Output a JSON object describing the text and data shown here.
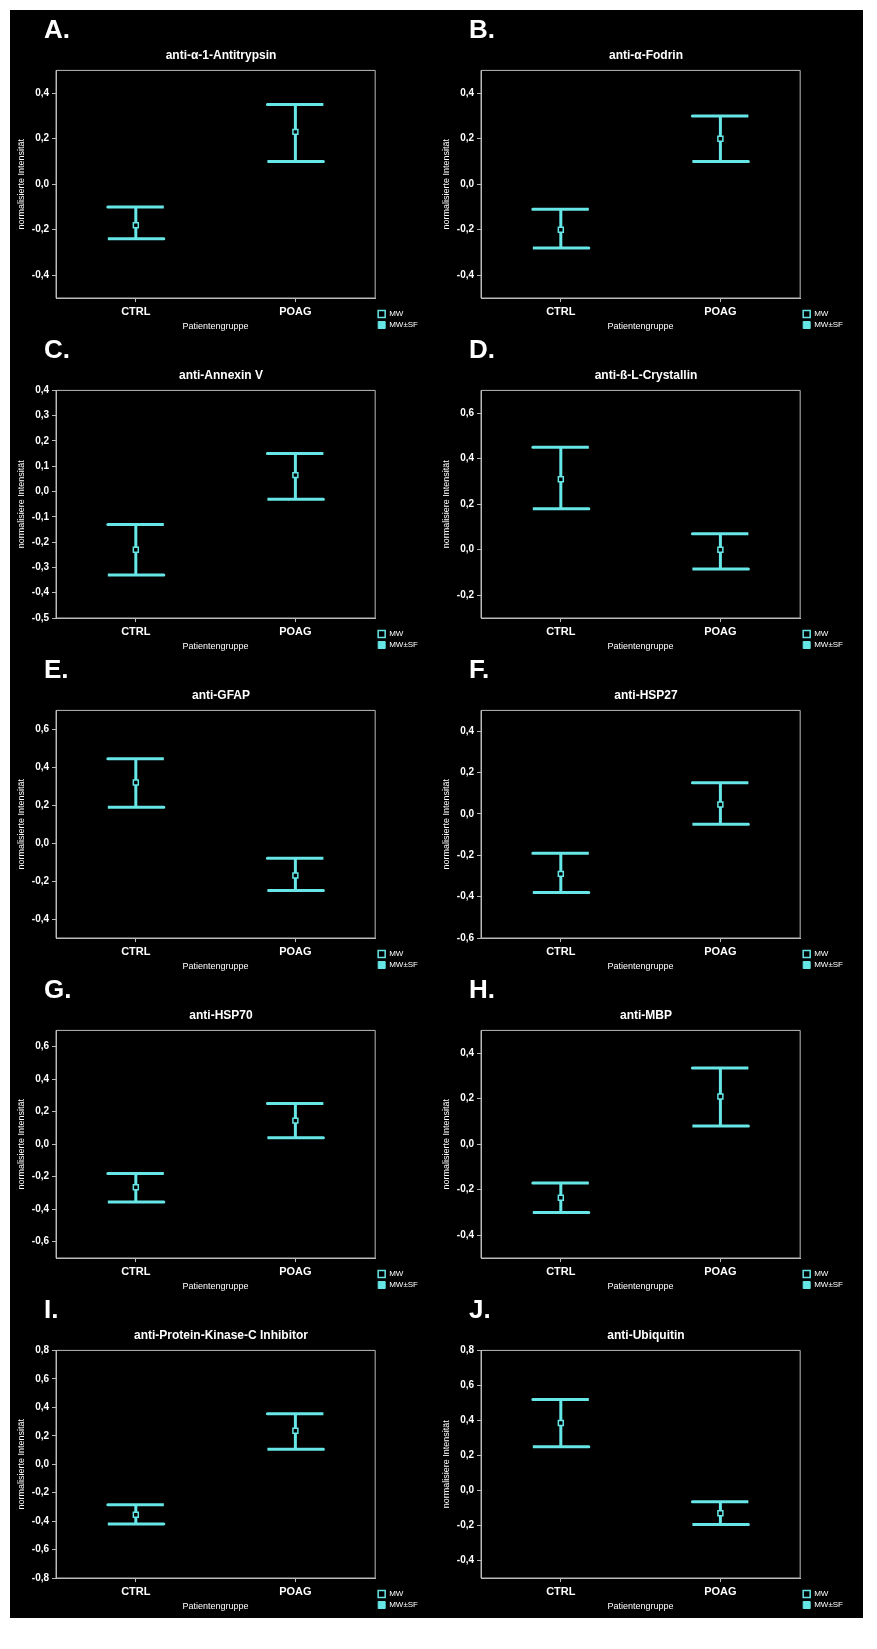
{
  "chart_data": [
    {
      "type": "scatter",
      "annotations": [
        "A.",
        "MW±SF"
      ],
      "title": "anti-α-1-Antitrypsin",
      "xlabel": "Patientengruppe",
      "ylabel": "normalisierte Intensität",
      "categories": [
        "CTRL",
        "POAG"
      ],
      "ylim": [
        -0.5,
        0.5
      ],
      "yticks": [
        {
          "value": -0.4,
          "label": "-0,4"
        },
        {
          "value": -0.2,
          "label": "-0,2"
        },
        {
          "value": 0,
          "label": "0,0"
        },
        {
          "value": 0.2,
          "label": "0,2"
        },
        {
          "value": 0.4,
          "label": "0,4"
        }
      ],
      "legend": "bottom right",
      "marker": "square",
      "series": [
        {
          "name": "MW",
          "color": "#66e6e6",
          "values": [
            -0.18,
            0.23
          ],
          "errors": [
            [
              -0.24,
              -0.1
            ],
            [
              0.1,
              0.35
            ]
          ]
        }
      ]
    },
    {
      "type": "scatter",
      "annotations": [
        "B.",
        "MW±SF"
      ],
      "title": "anti-α-Fodrin",
      "xlabel": "Patientengruppe",
      "ylabel": "normalisierte Intensität",
      "categories": [
        "CTRL",
        "POAG"
      ],
      "ylim": [
        -0.5,
        0.5
      ],
      "yticks": [
        {
          "value": -0.4,
          "label": "-0,4"
        },
        {
          "value": -0.2,
          "label": "-0,2"
        },
        {
          "value": 0,
          "label": "0,0"
        },
        {
          "value": 0.2,
          "label": "0,2"
        },
        {
          "value": 0.4,
          "label": "0,4"
        }
      ],
      "legend": "bottom right",
      "marker": "square",
      "series": [
        {
          "name": "MW",
          "color": "#66e6e6",
          "values": [
            -0.2,
            0.2
          ],
          "errors": [
            [
              -0.28,
              -0.11
            ],
            [
              0.1,
              0.3
            ]
          ]
        }
      ]
    },
    {
      "type": "scatter",
      "annotations": [
        "C.",
        "MW±SF"
      ],
      "title": "anti-Annexin V",
      "xlabel": "Patientengruppe",
      "ylabel": "normalisiere Intensität",
      "categories": [
        "CTRL",
        "POAG"
      ],
      "ylim": [
        -0.5,
        0.4
      ],
      "yticks": [
        {
          "value": -0.5,
          "label": "-0,5"
        },
        {
          "value": -0.4,
          "label": "-0,4"
        },
        {
          "value": -0.3,
          "label": "-0,3"
        },
        {
          "value": -0.2,
          "label": "-0,2"
        },
        {
          "value": -0.1,
          "label": "-0,1"
        },
        {
          "value": 0,
          "label": "0,0"
        },
        {
          "value": 0.1,
          "label": "0,1"
        },
        {
          "value": 0.2,
          "label": "0,2"
        },
        {
          "value": 0.3,
          "label": "0,3"
        },
        {
          "value": 0.4,
          "label": "0,4"
        }
      ],
      "legend": "bottom right",
      "marker": "square",
      "series": [
        {
          "name": "MW",
          "color": "#66e6e6",
          "values": [
            -0.23,
            0.065
          ],
          "errors": [
            [
              -0.33,
              -0.13
            ],
            [
              -0.03,
              0.15
            ]
          ]
        }
      ]
    },
    {
      "type": "scatter",
      "annotations": [
        "D.",
        "MW±SF"
      ],
      "title": "anti-ß-L-Crystallin",
      "xlabel": "Patientengruppe",
      "ylabel": "normalisiere Intensität",
      "categories": [
        "CTRL",
        "POAG"
      ],
      "ylim": [
        -0.3,
        0.7
      ],
      "yticks": [
        {
          "value": -0.2,
          "label": "-0,2"
        },
        {
          "value": 0,
          "label": "0,0"
        },
        {
          "value": 0.2,
          "label": "0,2"
        },
        {
          "value": 0.4,
          "label": "0,4"
        },
        {
          "value": 0.6,
          "label": "0,6"
        }
      ],
      "legend": "bottom right",
      "marker": "square",
      "series": [
        {
          "name": "MW",
          "color": "#66e6e6",
          "values": [
            0.31,
            0
          ],
          "errors": [
            [
              0.18,
              0.45
            ],
            [
              -0.085,
              0.07
            ]
          ]
        }
      ]
    },
    {
      "type": "scatter",
      "annotations": [
        "E.",
        "MW±SF"
      ],
      "title": "anti-GFAP",
      "xlabel": "Patientengruppe",
      "ylabel": "normalisierte Intensität",
      "categories": [
        "CTRL",
        "POAG"
      ],
      "ylim": [
        -0.5,
        0.7
      ],
      "yticks": [
        {
          "value": -0.4,
          "label": "-0,4"
        },
        {
          "value": -0.2,
          "label": "-0,2"
        },
        {
          "value": 0,
          "label": "0,0"
        },
        {
          "value": 0.2,
          "label": "0,2"
        },
        {
          "value": 0.4,
          "label": "0,4"
        },
        {
          "value": 0.6,
          "label": "0,6"
        }
      ],
      "legend": "bottom right",
      "marker": "square",
      "series": [
        {
          "name": "MW",
          "color": "#66e6e6",
          "values": [
            0.32,
            -0.17
          ],
          "errors": [
            [
              0.19,
              0.445
            ],
            [
              -0.25,
              -0.08
            ]
          ]
        }
      ]
    },
    {
      "type": "scatter",
      "annotations": [
        "F.",
        "MW±SF"
      ],
      "title": "anti-HSP27",
      "xlabel": "Patientengruppe",
      "ylabel": "normalisierte Intensität",
      "categories": [
        "CTRL",
        "POAG"
      ],
      "ylim": [
        -0.6,
        0.5
      ],
      "yticks": [
        {
          "value": -0.6,
          "label": "-0,6"
        },
        {
          "value": -0.4,
          "label": "-0,4"
        },
        {
          "value": -0.2,
          "label": "-0,2"
        },
        {
          "value": 0,
          "label": "0,0"
        },
        {
          "value": 0.2,
          "label": "0,2"
        },
        {
          "value": 0.4,
          "label": "0,4"
        }
      ],
      "legend": "bottom right",
      "marker": "square",
      "series": [
        {
          "name": "MW",
          "color": "#66e6e6",
          "values": [
            -0.29,
            0.045
          ],
          "errors": [
            [
              -0.38,
              -0.19
            ],
            [
              -0.05,
              0.15
            ]
          ]
        }
      ]
    },
    {
      "type": "scatter",
      "annotations": [
        "G.",
        "MW±SF"
      ],
      "title": "anti-HSP70",
      "xlabel": "Patientengruppe",
      "ylabel": "normalisierte Intensität",
      "categories": [
        "CTRL",
        "POAG"
      ],
      "ylim": [
        -0.7,
        0.7
      ],
      "yticks": [
        {
          "value": -0.6,
          "label": "-0,6"
        },
        {
          "value": -0.4,
          "label": "-0,4"
        },
        {
          "value": -0.2,
          "label": "-0,2"
        },
        {
          "value": 0,
          "label": "0,0"
        },
        {
          "value": 0.2,
          "label": "0,2"
        },
        {
          "value": 0.4,
          "label": "0,4"
        },
        {
          "value": 0.6,
          "label": "0,6"
        }
      ],
      "legend": "bottom right",
      "marker": "square",
      "series": [
        {
          "name": "MW",
          "color": "#66e6e6",
          "values": [
            -0.265,
            0.145
          ],
          "errors": [
            [
              -0.355,
              -0.18
            ],
            [
              0.04,
              0.25
            ]
          ]
        }
      ]
    },
    {
      "type": "scatter",
      "annotations": [
        "H.",
        "MW±SF"
      ],
      "title": "anti-MBP",
      "xlabel": "Patientengruppe",
      "ylabel": "normalisierte Intensität",
      "categories": [
        "CTRL",
        "POAG"
      ],
      "ylim": [
        -0.5,
        0.5
      ],
      "yticks": [
        {
          "value": -0.4,
          "label": "-0,4"
        },
        {
          "value": -0.2,
          "label": "-0,2"
        },
        {
          "value": 0,
          "label": "0,0"
        },
        {
          "value": 0.2,
          "label": "0,2"
        },
        {
          "value": 0.4,
          "label": "0,4"
        }
      ],
      "legend": "bottom right",
      "marker": "square",
      "series": [
        {
          "name": "MW",
          "color": "#66e6e6",
          "values": [
            -0.235,
            0.21
          ],
          "errors": [
            [
              -0.3,
              -0.17
            ],
            [
              0.08,
              0.335
            ]
          ]
        }
      ]
    },
    {
      "type": "scatter",
      "annotations": [
        "I.",
        "MW±SF"
      ],
      "title": "anti-Protein-Kinase-C Inhibitor",
      "xlabel": "Patientengruppe",
      "ylabel": "normalisierte Intensität",
      "categories": [
        "CTRL",
        "POAG"
      ],
      "ylim": [
        -0.8,
        0.8
      ],
      "yticks": [
        {
          "value": -0.8,
          "label": "-0,8"
        },
        {
          "value": -0.6,
          "label": "-0,6"
        },
        {
          "value": -0.4,
          "label": "-0,4"
        },
        {
          "value": -0.2,
          "label": "-0,2"
        },
        {
          "value": 0,
          "label": "0,0"
        },
        {
          "value": 0.2,
          "label": "0,2"
        },
        {
          "value": 0.4,
          "label": "0,4"
        },
        {
          "value": 0.6,
          "label": "0,6"
        },
        {
          "value": 0.8,
          "label": "0,8"
        }
      ],
      "legend": "bottom right",
      "marker": "square",
      "series": [
        {
          "name": "MW",
          "color": "#66e6e6",
          "values": [
            -0.355,
            0.235
          ],
          "errors": [
            [
              -0.42,
              -0.285
            ],
            [
              0.105,
              0.355
            ]
          ]
        }
      ]
    },
    {
      "type": "scatter",
      "annotations": [
        "J.",
        "MW±SF"
      ],
      "title": "anti-Ubiquitin",
      "xlabel": "Patientengruppe",
      "ylabel": "normalisiere Intensität",
      "categories": [
        "CTRL",
        "POAG"
      ],
      "ylim": [
        -0.5,
        0.8
      ],
      "yticks": [
        {
          "value": -0.4,
          "label": "-0,4"
        },
        {
          "value": -0.2,
          "label": "-0,2"
        },
        {
          "value": 0,
          "label": "0,0"
        },
        {
          "value": 0.2,
          "label": "0,2"
        },
        {
          "value": 0.4,
          "label": "0,4"
        },
        {
          "value": 0.6,
          "label": "0,6"
        },
        {
          "value": 0.8,
          "label": "0,8"
        }
      ],
      "legend": "bottom right",
      "marker": "square",
      "series": [
        {
          "name": "MW",
          "color": "#66e6e6",
          "values": [
            0.385,
            -0.13
          ],
          "errors": [
            [
              0.25,
              0.52
            ],
            [
              -0.195,
              -0.065
            ]
          ]
        }
      ]
    }
  ]
}
